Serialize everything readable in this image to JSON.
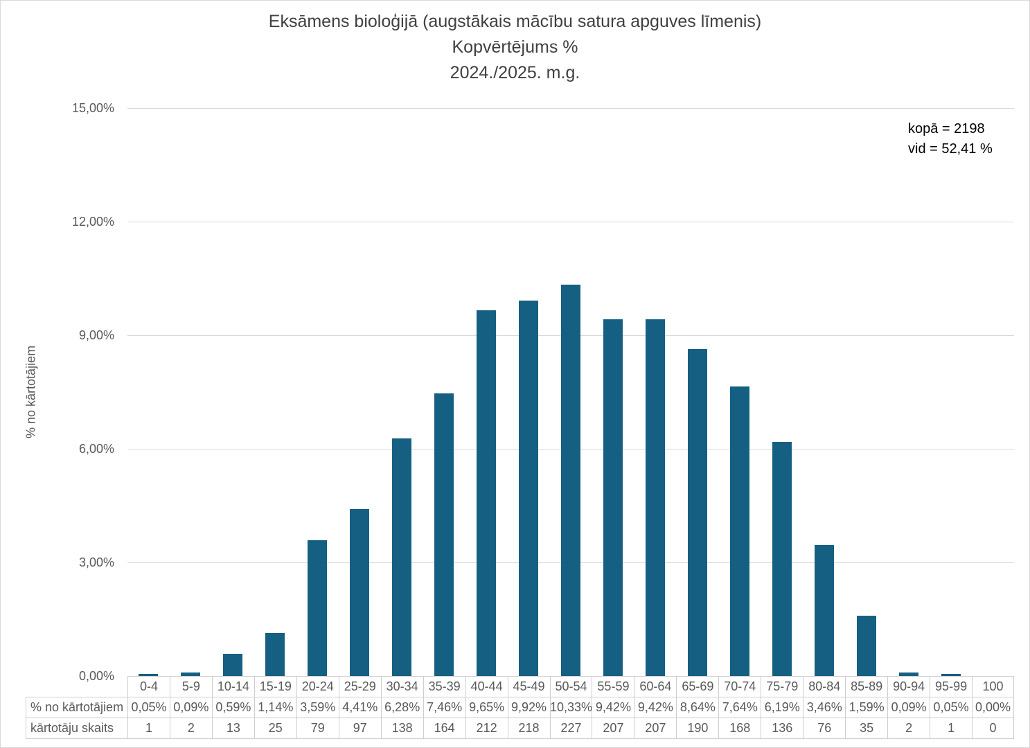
{
  "title": {
    "line1": "Eksāmens bioloģijā (augstākais mācību satura apguves līmenis)",
    "line2": "Kopvērtējums %",
    "line3": "2024./2025. m.g."
  },
  "annotation": {
    "total": "kopā = 2198",
    "mean": "vid = 52,41 %"
  },
  "y_axis": {
    "label": "% no kārtotājiem",
    "ticks": [
      {
        "value": 0,
        "label": "0,00%"
      },
      {
        "value": 3,
        "label": "3,00%"
      },
      {
        "value": 6,
        "label": "6,00%"
      },
      {
        "value": 9,
        "label": "9,00%"
      },
      {
        "value": 12,
        "label": "12,00%"
      },
      {
        "value": 15,
        "label": "15,00%"
      }
    ]
  },
  "table": {
    "pct_row_label": "% no kārtotājiem",
    "count_row_label": "kārtotāju skaits"
  },
  "chart_data": {
    "type": "bar",
    "title": "Eksāmens bioloģijā (augstākais mācību satura apguves līmenis) Kopvērtējums % 2024./2025. m.g.",
    "xlabel": "",
    "ylabel": "% no kārtotājiem",
    "ylim": [
      0,
      15
    ],
    "grid": true,
    "bar_color": "#156082",
    "total": 2198,
    "mean_pct": 52.41,
    "categories": [
      "0-4",
      "5-9",
      "10-14",
      "15-19",
      "20-24",
      "25-29",
      "30-34",
      "35-39",
      "40-44",
      "45-49",
      "50-54",
      "55-59",
      "60-64",
      "65-69",
      "70-74",
      "75-79",
      "80-84",
      "85-89",
      "90-94",
      "95-99",
      "100"
    ],
    "series": [
      {
        "name": "% no kārtotājiem",
        "values": [
          0.05,
          0.09,
          0.59,
          1.14,
          3.59,
          4.41,
          6.28,
          7.46,
          9.65,
          9.92,
          10.33,
          9.42,
          9.42,
          8.64,
          7.64,
          6.19,
          3.46,
          1.59,
          0.09,
          0.05,
          0.0
        ],
        "labels": [
          "0,05%",
          "0,09%",
          "0,59%",
          "1,14%",
          "3,59%",
          "4,41%",
          "6,28%",
          "7,46%",
          "9,65%",
          "9,92%",
          "10,33%",
          "9,42%",
          "9,42%",
          "8,64%",
          "7,64%",
          "6,19%",
          "3,46%",
          "1,59%",
          "0,09%",
          "0,05%",
          "0,00%"
        ]
      },
      {
        "name": "kārtotāju skaits",
        "values": [
          1,
          2,
          13,
          25,
          79,
          97,
          138,
          164,
          212,
          218,
          227,
          207,
          207,
          190,
          168,
          136,
          76,
          35,
          2,
          1,
          0
        ]
      }
    ]
  }
}
